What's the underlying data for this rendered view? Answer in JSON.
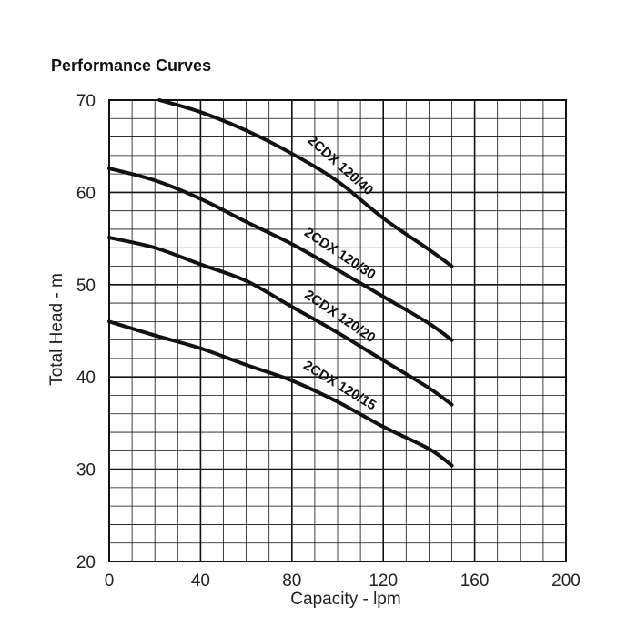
{
  "chart_data": {
    "type": "line",
    "title": "Performance Curves",
    "xlabel": "Capacity - lpm",
    "ylabel": "Total Head - m",
    "xlim": [
      0,
      200
    ],
    "ylim": [
      20,
      70
    ],
    "x_ticks": [
      "0",
      "40",
      "80",
      "120",
      "160",
      "200"
    ],
    "y_ticks": [
      "20",
      "30",
      "40",
      "50",
      "60",
      "70"
    ],
    "grid": true,
    "line_color": "#111111",
    "series": [
      {
        "name": "2CDX 120/40",
        "x": [
          22,
          40,
          60,
          80,
          100,
          120,
          140,
          150
        ],
        "y": [
          70,
          68.7,
          66.7,
          64.2,
          61.2,
          57.2,
          53.8,
          52
        ]
      },
      {
        "name": "2CDX 120/30",
        "x": [
          0,
          20,
          40,
          60,
          80,
          100,
          120,
          140,
          150
        ],
        "y": [
          62.6,
          61.3,
          59.3,
          56.8,
          54.4,
          51.6,
          48.7,
          45.8,
          44
        ]
      },
      {
        "name": "2CDX 120/20",
        "x": [
          0,
          20,
          40,
          60,
          80,
          100,
          120,
          140,
          150
        ],
        "y": [
          55.1,
          54,
          52.2,
          50.4,
          47.6,
          44.8,
          41.8,
          38.8,
          37
        ]
      },
      {
        "name": "2CDX 120/15",
        "x": [
          0,
          20,
          40,
          60,
          80,
          100,
          120,
          140,
          150
        ],
        "y": [
          46,
          44.5,
          43.1,
          41.3,
          39.6,
          37.3,
          34.6,
          32.2,
          30.4
        ]
      }
    ]
  }
}
